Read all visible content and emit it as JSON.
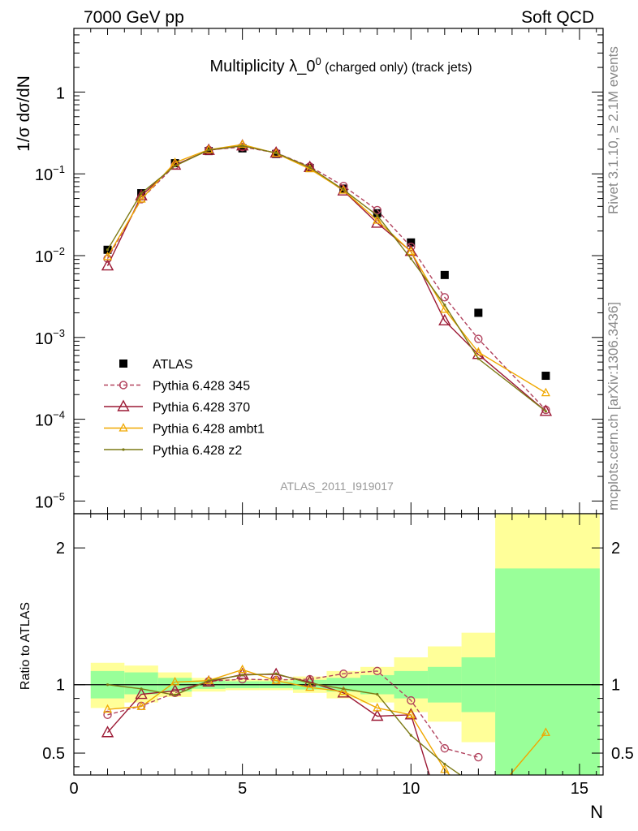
{
  "header": {
    "left": "7000 GeV pp",
    "right": "Soft QCD"
  },
  "side_labels": {
    "top": "Rivet 3.1.10, ≥ 2.1M events",
    "bottom": "mcplots.cern.ch [arXiv:1306.3436]"
  },
  "chart_data": [
    {
      "type": "line",
      "panel": "main",
      "title": "Multiplicity λ_0⁰ (charged only) (track jets)",
      "title_main": "Multiplicity λ_0",
      "title_sup": "0",
      "title_suffix": " (charged only) (track jets)",
      "watermark": "ATLAS_2011_I919017",
      "ylabel": "1/σ dσ/dN",
      "xlim": [
        0,
        15.7
      ],
      "ylim": [
        7e-06,
        6
      ],
      "yscale": "log",
      "ytick_labels": [
        {
          "base": "10",
          "exp": "−5",
          "v": 1e-05
        },
        {
          "base": "10",
          "exp": "−4",
          "v": 0.0001
        },
        {
          "base": "10",
          "exp": "−3",
          "v": 0.001
        },
        {
          "base": "10",
          "exp": "−2",
          "v": 0.01
        },
        {
          "base": "10",
          "exp": "−1",
          "v": 0.1
        },
        {
          "base": "1",
          "exp": "",
          "v": 1
        }
      ],
      "legend": {
        "placement": "bottom-left",
        "entries": [
          "ATLAS",
          "Pythia 6.428 345",
          "Pythia 6.428 370",
          "Pythia 6.428 ambt1",
          "Pythia 6.428 z2"
        ]
      },
      "series": [
        {
          "name": "ATLAS",
          "style": "square",
          "color": "#000000",
          "x": [
            1,
            2,
            3,
            4,
            5,
            6,
            7,
            8,
            9,
            10,
            11,
            12,
            14
          ],
          "y": [
            0.0118,
            0.058,
            0.135,
            0.19,
            0.205,
            0.175,
            0.118,
            0.066,
            0.033,
            0.0145,
            0.0058,
            0.002,
            0.00034
          ]
        },
        {
          "name": "Pythia 6.428 345",
          "style": "circle-dashed",
          "color": "#b2435e",
          "x": [
            1,
            2,
            3,
            4,
            5,
            6,
            7,
            8,
            9,
            10,
            11,
            12,
            14
          ],
          "y": [
            0.0092,
            0.049,
            0.127,
            0.196,
            0.213,
            0.181,
            0.123,
            0.071,
            0.036,
            0.0128,
            0.0031,
            0.00096,
            0.00013
          ]
        },
        {
          "name": "Pythia 6.428 370",
          "style": "triangle",
          "color": "#9c1a35",
          "x": [
            1,
            2,
            3,
            4,
            5,
            6,
            7,
            8,
            9,
            10,
            11,
            12,
            14
          ],
          "y": [
            0.0075,
            0.054,
            0.128,
            0.194,
            0.22,
            0.18,
            0.12,
            0.062,
            0.025,
            0.0113,
            0.0016,
            0.00062,
            0.000125
          ]
        },
        {
          "name": "Pythia 6.428 ambt1",
          "style": "triangle-small",
          "color": "#f0a800",
          "x": [
            1,
            2,
            3,
            4,
            5,
            6,
            7,
            8,
            9,
            10,
            11,
            12,
            14
          ],
          "y": [
            0.0097,
            0.049,
            0.137,
            0.197,
            0.228,
            0.178,
            0.115,
            0.063,
            0.027,
            0.0112,
            0.0022,
            0.00066,
            0.00021
          ]
        },
        {
          "name": "Pythia 6.428 z2",
          "style": "dot",
          "color": "#7c7a15",
          "x": [
            1,
            2,
            3,
            4,
            5,
            6,
            7,
            8,
            9,
            10,
            11,
            12,
            14
          ],
          "y": [
            0.0118,
            0.058,
            0.125,
            0.196,
            0.22,
            0.18,
            0.12,
            0.064,
            0.031,
            0.0092,
            0.0025,
            0.00055,
            0.000125
          ]
        }
      ]
    },
    {
      "type": "line",
      "panel": "ratio",
      "ylabel": "Ratio to ATLAS",
      "xlabel": "N",
      "xlim": [
        0,
        15.7
      ],
      "ylim": [
        0.34,
        2.25
      ],
      "yticks": [
        0.5,
        1,
        2
      ],
      "ytick_labels": [
        "0.5",
        "1",
        "2"
      ],
      "xticks": [
        0,
        5,
        10,
        15
      ],
      "xtick_labels": [
        "0",
        "5",
        "10",
        "15"
      ],
      "bands": [
        {
          "x0": 0.5,
          "x1": 1.5,
          "green": [
            0.9,
            1.1
          ],
          "yellow": [
            0.83,
            1.16
          ]
        },
        {
          "x0": 1.5,
          "x1": 2.5,
          "green": [
            0.93,
            1.09
          ],
          "yellow": [
            0.87,
            1.14
          ]
        },
        {
          "x0": 2.5,
          "x1": 3.5,
          "green": [
            0.95,
            1.05
          ],
          "yellow": [
            0.91,
            1.09
          ]
        },
        {
          "x0": 3.5,
          "x1": 4.5,
          "green": [
            0.97,
            1.03
          ],
          "yellow": [
            0.95,
            1.05
          ]
        },
        {
          "x0": 4.5,
          "x1": 5.5,
          "green": [
            0.975,
            1.025
          ],
          "yellow": [
            0.96,
            1.04
          ]
        },
        {
          "x0": 5.5,
          "x1": 6.5,
          "green": [
            0.975,
            1.025
          ],
          "yellow": [
            0.96,
            1.04
          ]
        },
        {
          "x0": 6.5,
          "x1": 7.5,
          "green": [
            0.965,
            1.035
          ],
          "yellow": [
            0.94,
            1.06
          ]
        },
        {
          "x0": 7.5,
          "x1": 8.5,
          "green": [
            0.95,
            1.05
          ],
          "yellow": [
            0.9,
            1.1
          ]
        },
        {
          "x0": 8.5,
          "x1": 9.5,
          "green": [
            0.93,
            1.07
          ],
          "yellow": [
            0.87,
            1.13
          ]
        },
        {
          "x0": 9.5,
          "x1": 10.5,
          "green": [
            0.9,
            1.1
          ],
          "yellow": [
            0.8,
            1.2
          ]
        },
        {
          "x0": 10.5,
          "x1": 11.5,
          "green": [
            0.87,
            1.13
          ],
          "yellow": [
            0.73,
            1.28
          ]
        },
        {
          "x0": 11.5,
          "x1": 12.5,
          "green": [
            0.8,
            1.2
          ],
          "yellow": [
            0.58,
            1.38
          ]
        },
        {
          "x0": 12.5,
          "x1": 15.6,
          "green": [
            0.0,
            1.85
          ],
          "yellow": [
            0.0,
            3.0
          ]
        }
      ],
      "series": [
        {
          "name": "Pythia 6.428 345",
          "style": "circle-dashed",
          "color": "#b2435e",
          "x": [
            1,
            2,
            3,
            4,
            5,
            6,
            7,
            8,
            9,
            10,
            11,
            12
          ],
          "y": [
            0.78,
            0.845,
            0.94,
            1.025,
            1.04,
            1.035,
            1.04,
            1.08,
            1.1,
            0.885,
            0.535,
            0.47
          ]
        },
        {
          "name": "Pythia 6.428 370",
          "style": "triangle",
          "color": "#9c1a35",
          "x": [
            1,
            2,
            3,
            4,
            5,
            6,
            7,
            8,
            9,
            10,
            10.6
          ],
          "y": [
            0.65,
            0.93,
            0.955,
            1.02,
            1.075,
            1.075,
            1.02,
            0.94,
            0.77,
            0.78,
            0.3
          ]
        },
        {
          "name": "Pythia 6.428 ambt1",
          "style": "triangle-small",
          "color": "#f0a800",
          "x": [
            1,
            2,
            3,
            4,
            5,
            6,
            7,
            8,
            9,
            10,
            11,
            11.3,
            12.8,
            14
          ],
          "y": [
            0.82,
            0.84,
            1.02,
            1.03,
            1.11,
            1.03,
            0.98,
            0.95,
            0.83,
            0.78,
            0.38,
            0.3,
            0.3,
            0.65
          ]
        },
        {
          "name": "Pythia 6.428 z2",
          "style": "dot",
          "color": "#7c7a15",
          "x": [
            1,
            2,
            3,
            4,
            5,
            6,
            7,
            8,
            9,
            10,
            11,
            11.7
          ],
          "y": [
            1.0,
            0.97,
            0.925,
            1.03,
            1.07,
            1.08,
            1.01,
            0.97,
            0.93,
            0.63,
            0.42,
            0.3
          ]
        }
      ]
    }
  ]
}
